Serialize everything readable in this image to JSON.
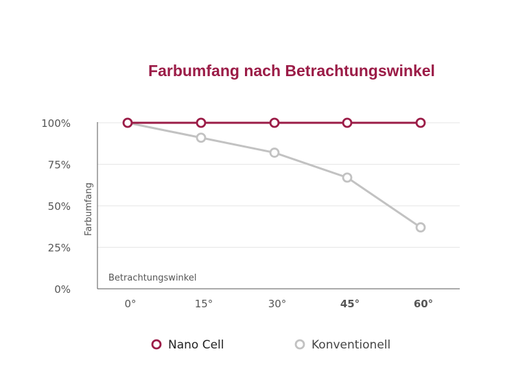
{
  "chart_data": {
    "type": "line",
    "title": "Farbumfang nach Betrachtungswinkel",
    "ylabel": "Farbumfang",
    "xlabel": "Betrachtungswinkel",
    "categories": [
      "0°",
      "15°",
      "30°",
      "45°",
      "60°"
    ],
    "highlighted_categories": [
      "45°",
      "60°"
    ],
    "y_ticks": [
      "100%",
      "75%",
      "50%",
      "25%",
      "0%"
    ],
    "ylim": [
      0,
      100
    ],
    "grid": true,
    "legend_position": "bottom",
    "series": [
      {
        "name": "Nano Cell",
        "values": [
          100,
          100,
          100,
          100,
          100
        ],
        "color": "#9b1c47"
      },
      {
        "name": "Konventionell",
        "values": [
          100,
          91,
          82,
          67,
          37
        ],
        "color": "#c2c2c2"
      }
    ]
  },
  "colors": {
    "accent": "#9b1c47",
    "secondary": "#c2c2c2",
    "grid": "#e6e6e6",
    "axis": "#555555"
  }
}
